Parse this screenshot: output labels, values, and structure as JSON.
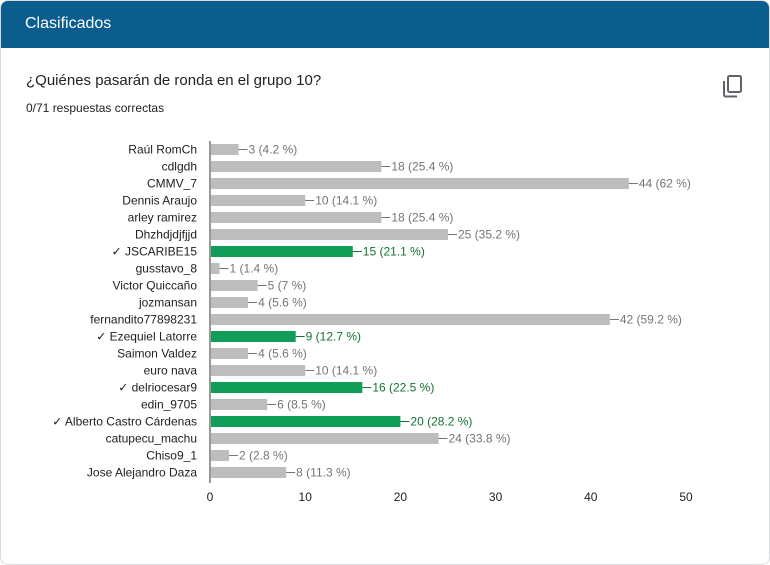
{
  "header": {
    "title": "Clasificados"
  },
  "question": {
    "text": "¿Quiénes pasarán de ronda en el grupo 10?",
    "score": "0/71 respuestas correctas",
    "copy_icon": "copy-icon"
  },
  "colors": {
    "header": "#0b5d8e",
    "correct": "#0f9d58",
    "neutral": "#bdbdbd",
    "correct_text": "#137333",
    "neutral_text": "#757575"
  },
  "chart_data": {
    "type": "bar",
    "orientation": "horizontal",
    "title": "¿Quiénes pasarán de ronda en el grupo 10?",
    "xlim": [
      0,
      50
    ],
    "xticks": [
      "0",
      "10",
      "20",
      "30",
      "40",
      "50"
    ],
    "categories": [
      "Raúl RomCh",
      "cdlgdh",
      "CMMV_7",
      "Dennis Araujo",
      "arley ramirez",
      "Dhzhdjdjfjjd",
      "✓ JSCARIBE15",
      "gusstavo_8",
      "Victor Quiccaño",
      "jozmansan",
      "fernandito77898231",
      "✓ Ezequiel Latorre",
      "Saimon Valdez",
      "euro nava",
      "✓ delriocesar9",
      "edin_9705",
      "✓ Alberto Castro Cárdenas",
      "catupecu_machu",
      "Chiso9_1",
      "Jose Alejandro Daza"
    ],
    "values": [
      3,
      18,
      44,
      10,
      18,
      25,
      15,
      1,
      5,
      4,
      42,
      9,
      4,
      10,
      16,
      6,
      20,
      24,
      2,
      8
    ],
    "labels": [
      "3 (4.2 %)",
      "18 (25.4 %)",
      "44 (62 %)",
      "10 (14.1 %)",
      "18 (25.4 %)",
      "25 (35.2 %)",
      "15 (21.1 %)",
      "1 (1.4 %)",
      "5 (7 %)",
      "4 (5.6 %)",
      "42 (59.2 %)",
      "9 (12.7 %)",
      "4 (5.6 %)",
      "10 (14.1 %)",
      "16 (22.5 %)",
      "6 (8.5 %)",
      "20 (28.2 %)",
      "24 (33.8 %)",
      "2 (2.8 %)",
      "8 (11.3 %)"
    ],
    "correct": [
      false,
      false,
      false,
      false,
      false,
      false,
      true,
      false,
      false,
      false,
      false,
      true,
      false,
      false,
      true,
      false,
      true,
      false,
      false,
      false
    ]
  }
}
